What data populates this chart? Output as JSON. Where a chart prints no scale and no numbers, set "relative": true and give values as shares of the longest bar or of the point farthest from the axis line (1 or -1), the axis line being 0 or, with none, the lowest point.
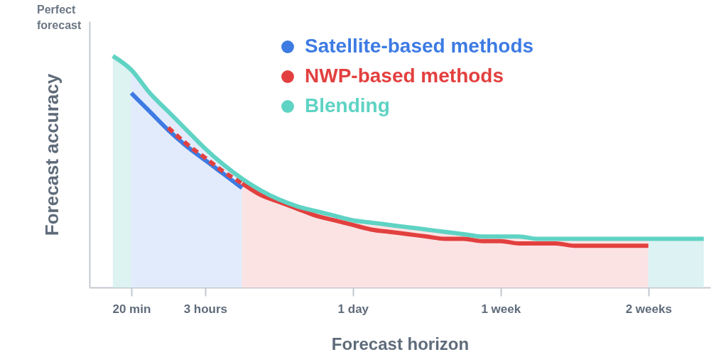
{
  "chart_data": {
    "type": "line",
    "relative": true,
    "xlabel": "Forecast horizon",
    "ylabel": "Forecast accuracy",
    "annotations": [
      "Perfect forecast"
    ],
    "categories": [
      null,
      "20 min",
      null,
      null,
      null,
      "3 hours",
      null,
      null,
      null,
      null,
      null,
      null,
      null,
      "1 day",
      null,
      null,
      null,
      null,
      null,
      null,
      null,
      "1 week",
      null,
      null,
      null,
      null,
      null,
      null,
      null,
      "2 weeks",
      null,
      null,
      null
    ],
    "legend": "top",
    "series": [
      {
        "type": "area",
        "color": "#dcf3f1",
        "values": [
          1.0,
          0.94,
          null,
          null,
          null,
          null,
          null,
          null,
          null,
          null,
          null,
          null,
          null,
          null,
          null,
          null,
          null,
          null,
          null,
          null,
          null,
          null,
          null,
          null,
          null,
          null,
          null,
          null,
          null,
          null,
          null,
          null,
          null
        ]
      },
      {
        "type": "area",
        "color": "#e2ebfb",
        "values": [
          null,
          0.94,
          0.84,
          0.76,
          0.68,
          0.6,
          0.53,
          0.47,
          null,
          null,
          null,
          null,
          null,
          null,
          null,
          null,
          null,
          null,
          null,
          null,
          null,
          null,
          null,
          null,
          null,
          null,
          null,
          null,
          null,
          null,
          null,
          null,
          null
        ]
      },
      {
        "type": "area",
        "color": "#fbe3e4",
        "values": [
          null,
          null,
          null,
          null,
          null,
          null,
          null,
          0.47,
          0.42,
          0.38,
          0.35,
          0.33,
          0.31,
          0.29,
          0.28,
          0.27,
          0.26,
          0.25,
          0.24,
          0.23,
          0.22,
          0.22,
          0.22,
          0.21,
          0.21,
          0.21,
          0.21,
          0.21,
          0.21,
          0.21,
          null,
          null,
          null
        ]
      },
      {
        "type": "area",
        "color": "#dcf2f3",
        "values": [
          null,
          null,
          null,
          null,
          null,
          null,
          null,
          null,
          null,
          null,
          null,
          null,
          null,
          null,
          null,
          null,
          null,
          null,
          null,
          null,
          null,
          null,
          null,
          null,
          null,
          null,
          null,
          null,
          null,
          0.21,
          0.21,
          0.21,
          0.21
        ]
      },
      {
        "name": "Satellite-based methods",
        "color": "#3d7be3",
        "values": [
          null,
          0.84,
          0.76,
          0.68,
          0.61,
          0.55,
          0.49,
          0.43,
          null,
          null,
          null,
          null,
          null,
          null,
          null,
          null,
          null,
          null,
          null,
          null,
          null,
          null,
          null,
          null,
          null,
          null,
          null,
          null,
          null,
          null,
          null,
          null,
          null
        ]
      },
      {
        "color": "#e2403f",
        "line_style": "dashed",
        "values": [
          null,
          null,
          null,
          0.69,
          0.62,
          0.56,
          0.5,
          0.45,
          null,
          null,
          null,
          null,
          null,
          null,
          null,
          null,
          null,
          null,
          null,
          null,
          null,
          null,
          null,
          null,
          null,
          null,
          null,
          null,
          null,
          null,
          null,
          null,
          null
        ]
      },
      {
        "name": "NWP-based methods",
        "color": "#e2403f",
        "values": [
          null,
          null,
          null,
          null,
          null,
          null,
          null,
          0.45,
          0.4,
          0.37,
          0.34,
          0.31,
          0.29,
          0.27,
          0.25,
          0.24,
          0.23,
          0.22,
          0.21,
          0.21,
          0.2,
          0.2,
          0.19,
          0.19,
          0.19,
          0.18,
          0.18,
          0.18,
          0.18,
          0.18,
          null,
          null,
          null
        ]
      },
      {
        "name": "Blending",
        "color": "#5fd3c4",
        "values": [
          1.0,
          0.94,
          0.84,
          0.76,
          0.68,
          0.6,
          0.53,
          0.47,
          0.42,
          0.38,
          0.35,
          0.33,
          0.31,
          0.29,
          0.28,
          0.27,
          0.26,
          0.25,
          0.24,
          0.23,
          0.22,
          0.22,
          0.22,
          0.21,
          0.21,
          0.21,
          0.21,
          0.21,
          0.21,
          0.21,
          0.21,
          0.21,
          0.21
        ]
      }
    ]
  }
}
